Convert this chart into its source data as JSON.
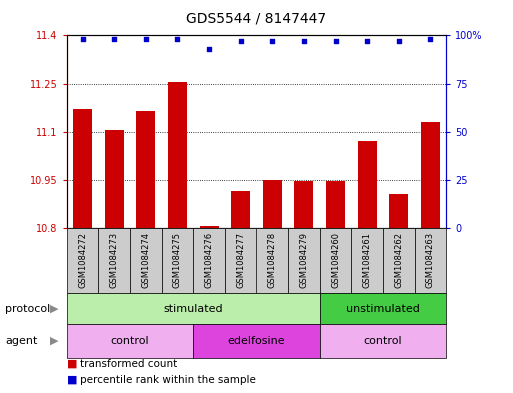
{
  "title": "GDS5544 / 8147447",
  "samples": [
    "GSM1084272",
    "GSM1084273",
    "GSM1084274",
    "GSM1084275",
    "GSM1084276",
    "GSM1084277",
    "GSM1084278",
    "GSM1084279",
    "GSM1084260",
    "GSM1084261",
    "GSM1084262",
    "GSM1084263"
  ],
  "bar_values": [
    11.17,
    11.105,
    11.165,
    11.255,
    10.805,
    10.915,
    10.95,
    10.945,
    10.945,
    11.07,
    10.905,
    11.13
  ],
  "percentile_values": [
    98,
    98,
    98,
    98,
    93,
    97,
    97,
    97,
    97,
    97,
    97,
    98
  ],
  "ylim_left": [
    10.8,
    11.4
  ],
  "ylim_right": [
    0,
    100
  ],
  "yticks_left": [
    10.8,
    10.95,
    11.1,
    11.25,
    11.4
  ],
  "yticks_right": [
    0,
    25,
    50,
    75,
    100
  ],
  "ytick_labels_left": [
    "10.8",
    "10.95",
    "11.1",
    "11.25",
    "11.4"
  ],
  "ytick_labels_right": [
    "0",
    "25",
    "50",
    "75",
    "100%"
  ],
  "bar_color": "#cc0000",
  "dot_color": "#0000cc",
  "bg_color": "#ffffff",
  "plot_bg": "#ffffff",
  "grid_color": "#000000",
  "sample_cell_color": "#cccccc",
  "protocol_groups": [
    {
      "label": "stimulated",
      "start": 0,
      "end": 7,
      "color": "#bbeeaa"
    },
    {
      "label": "unstimulated",
      "start": 8,
      "end": 11,
      "color": "#44cc44"
    }
  ],
  "agent_groups": [
    {
      "label": "control",
      "start": 0,
      "end": 3,
      "color": "#f0b0f0"
    },
    {
      "label": "edelfosine",
      "start": 4,
      "end": 7,
      "color": "#dd44dd"
    },
    {
      "label": "control",
      "start": 8,
      "end": 11,
      "color": "#f0b0f0"
    }
  ],
  "legend_items": [
    {
      "label": "transformed count",
      "color": "#cc0000"
    },
    {
      "label": "percentile rank within the sample",
      "color": "#0000cc"
    }
  ],
  "protocol_label": "protocol",
  "agent_label": "agent",
  "title_fontsize": 10,
  "tick_fontsize": 7,
  "label_fontsize": 8,
  "sample_fontsize": 6,
  "legend_fontsize": 7.5
}
